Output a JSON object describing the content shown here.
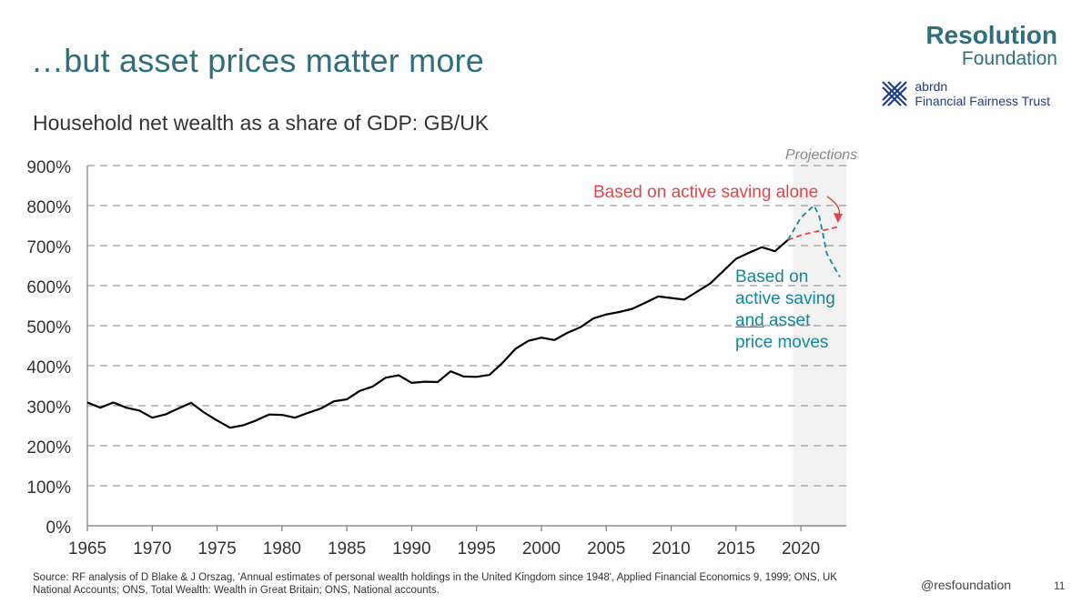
{
  "slide": {
    "title": "…but asset prices matter more",
    "logo_line1": "Resolution",
    "logo_line2": "Foundation",
    "partner_line1": "abrdn",
    "partner_line2": "Financial Fairness Trust",
    "source": "Source: RF analysis of D Blake & J Orszag, 'Annual estimates of personal wealth holdings in the United Kingdom since 1948', Applied Financial Economics 9, 1999; ONS, UK National Accounts; ONS, Total Wealth: Wealth in Great Britain; ONS, National accounts.",
    "handle": "@resfoundation",
    "page_number": "11",
    "colors": {
      "brand": "#2f6e7b",
      "red": "#e0464b",
      "teal": "#16869c",
      "line": "#000000"
    }
  },
  "chart_data": {
    "type": "line",
    "title": "Household net wealth as a share of GDP: GB/UK",
    "xlabel": "",
    "ylabel": "",
    "xlim": [
      1965,
      2023.5
    ],
    "ylim": [
      0,
      900
    ],
    "x_ticks": [
      1965,
      1970,
      1975,
      1980,
      1985,
      1990,
      1995,
      2000,
      2005,
      2010,
      2015,
      2020
    ],
    "y_ticks": [
      0,
      100,
      200,
      300,
      400,
      500,
      600,
      700,
      800,
      900
    ],
    "y_tick_labels": [
      "0%",
      "100%",
      "200%",
      "300%",
      "400%",
      "500%",
      "600%",
      "700%",
      "800%",
      "900%"
    ],
    "grid": "horizontal dashed",
    "projection_start": 2019.4,
    "projection_label": "Projections",
    "series": [
      {
        "style": "solid",
        "color": "#000000",
        "x": [
          1965,
          1966,
          1967,
          1968,
          1969,
          1970,
          1971,
          1972,
          1973,
          1974,
          1975,
          1976,
          1977,
          1978,
          1979,
          1980,
          1981,
          1982,
          1983,
          1984,
          1985,
          1986,
          1987,
          1988,
          1989,
          1990,
          1991,
          1992,
          1993,
          1994,
          1995,
          1996,
          1997,
          1998,
          1999,
          2000,
          2001,
          2002,
          2003,
          2004,
          2005,
          2006,
          2007,
          2008,
          2009,
          2010,
          2011,
          2012,
          2013,
          2014,
          2015,
          2016,
          2017,
          2018,
          2019
        ],
        "values": [
          308,
          295,
          308,
          295,
          288,
          270,
          278,
          293,
          307,
          283,
          263,
          245,
          251,
          263,
          278,
          277,
          270,
          282,
          293,
          311,
          316,
          337,
          348,
          370,
          376,
          357,
          360,
          359,
          386,
          373,
          372,
          377,
          407,
          442,
          462,
          470,
          464,
          482,
          496,
          518,
          528,
          534,
          542,
          557,
          573,
          569,
          565,
          585,
          605,
          636,
          667,
          682,
          696,
          686,
          714
        ]
      },
      {
        "name": "Based on active saving alone",
        "style": "dashed",
        "color": "#e0464b",
        "x": [
          2019,
          2020,
          2021,
          2022,
          2023
        ],
        "values": [
          714,
          726,
          734,
          740,
          748
        ]
      },
      {
        "name": "Based on active saving and asset price moves",
        "style": "dashed",
        "color": "#16869c",
        "x": [
          2019,
          2020,
          2020.5,
          2021,
          2021.4,
          2022,
          2022.5,
          2023
        ],
        "values": [
          714,
          770,
          785,
          800,
          776,
          680,
          650,
          622
        ]
      }
    ],
    "annotations": {
      "red": "Based on active saving alone",
      "teal_line1": "Based on",
      "teal_line2": "active saving",
      "teal_and": "and",
      "teal_asset": " asset",
      "teal_line4": "price moves"
    }
  }
}
